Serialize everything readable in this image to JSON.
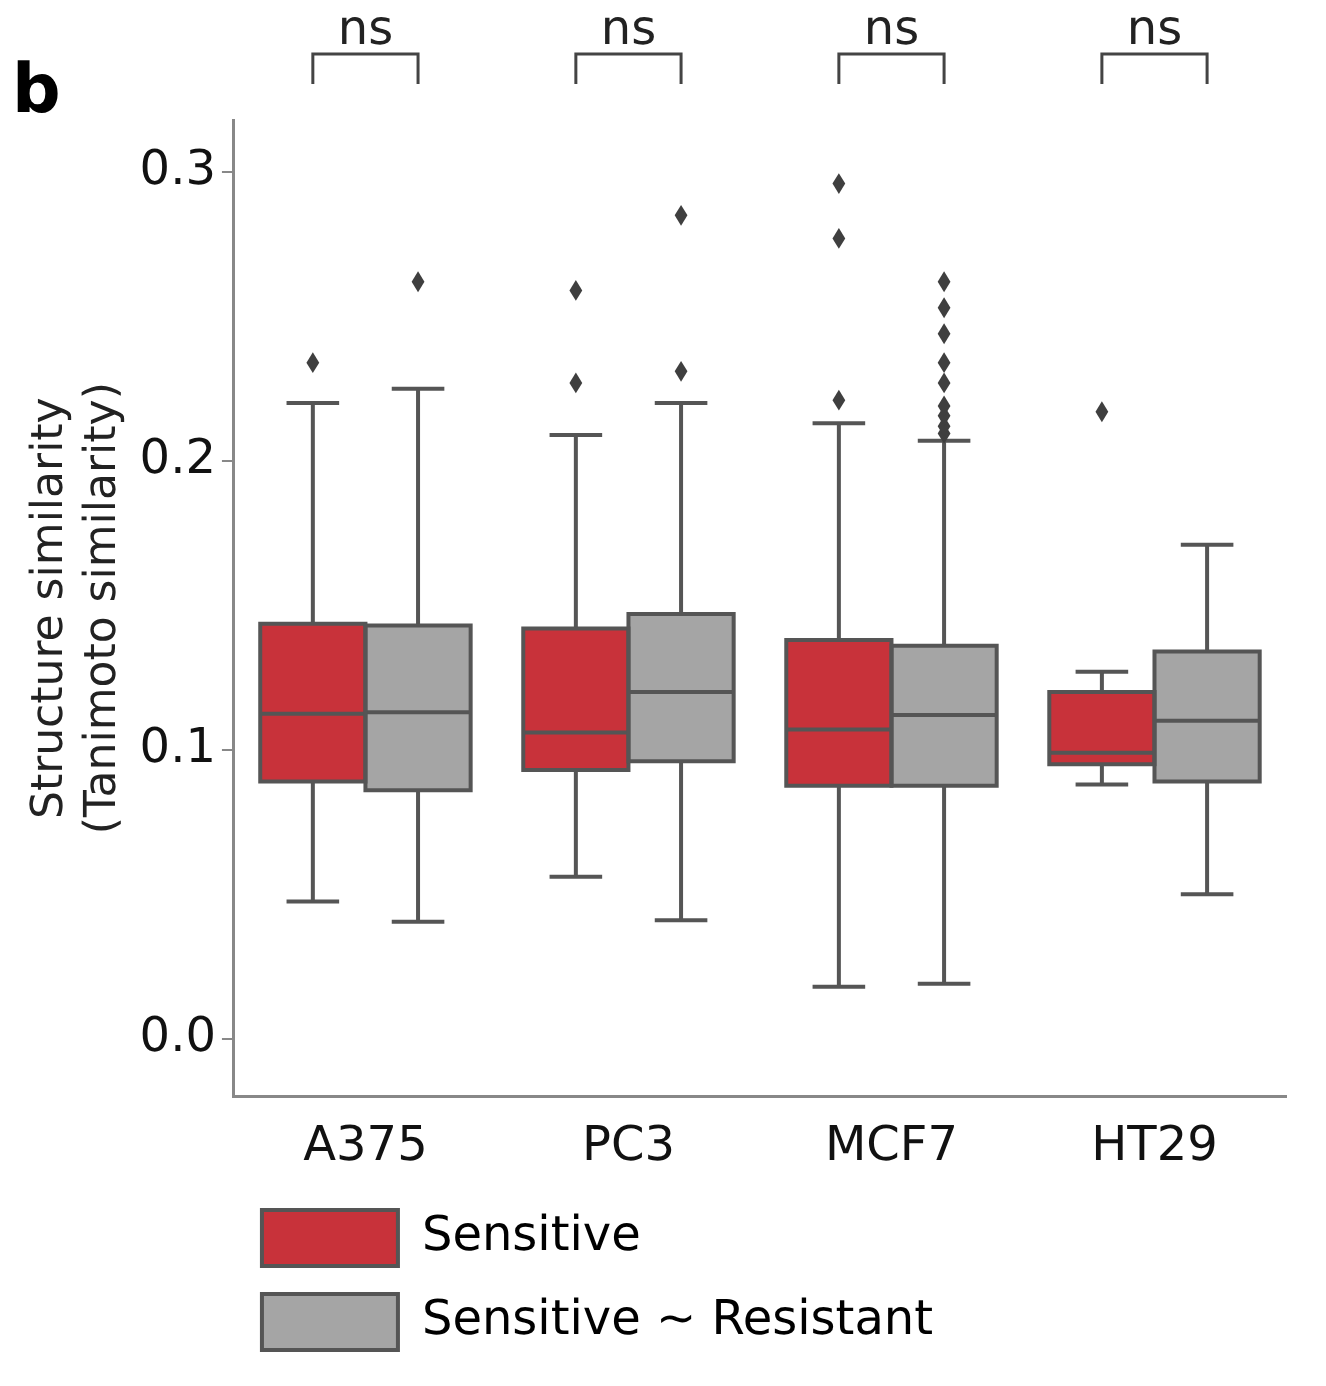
{
  "chart_data": {
    "type": "box",
    "title": "b",
    "ylabel": "Structure similarity (Tanimoto similarity)",
    "categories": [
      "A375",
      "PC3",
      "MCF7",
      "HT29"
    ],
    "ylim": [
      -0.02,
      0.318
    ],
    "yticks": [
      {
        "value": 0,
        "label": "0.0"
      },
      {
        "value": 0.1,
        "label": "0.1"
      },
      {
        "value": 0.2,
        "label": "0.2"
      },
      {
        "value": 0.3,
        "label": "0.3"
      }
    ],
    "grid": false,
    "legend": "bottom",
    "marker": "diamond",
    "annotations": [
      "ns",
      "ns",
      "ns",
      "ns"
    ],
    "series": [
      {
        "name": "Sensitive",
        "color": "#c8323a",
        "boxes": [
          {
            "low": 0.0475,
            "q1": 0.089,
            "median": 0.1125,
            "q3": 0.1436,
            "high": 0.22,
            "outliers": [
              0.234
            ]
          },
          {
            "low": 0.056,
            "q1": 0.093,
            "median": 0.106,
            "q3": 0.142,
            "high": 0.209,
            "outliers": [
              0.227,
              0.259
            ]
          },
          {
            "low": 0.018,
            "q1": 0.0875,
            "median": 0.107,
            "q3": 0.138,
            "high": 0.213,
            "outliers": [
              0.221,
              0.277,
              0.296
            ]
          },
          {
            "low": 0.088,
            "q1": 0.095,
            "median": 0.099,
            "q3": 0.12,
            "high": 0.127,
            "outliers": [
              0.217
            ]
          }
        ]
      },
      {
        "name": "Sensitive ~ Resistant",
        "color": "#a5a5a5",
        "boxes": [
          {
            "low": 0.0405,
            "q1": 0.086,
            "median": 0.113,
            "q3": 0.143,
            "high": 0.225,
            "outliers": [
              0.262
            ]
          },
          {
            "low": 0.041,
            "q1": 0.096,
            "median": 0.12,
            "q3": 0.147,
            "high": 0.22,
            "outliers": [
              0.231,
              0.285
            ]
          },
          {
            "low": 0.019,
            "q1": 0.0875,
            "median": 0.112,
            "q3": 0.136,
            "high": 0.207,
            "outliers": [
              0.2095,
              0.212,
              0.2156,
              0.219,
              0.227,
              0.234,
              0.244,
              0.253,
              0.262
            ]
          },
          {
            "low": 0.05,
            "q1": 0.089,
            "median": 0.11,
            "q3": 0.134,
            "high": 0.171
          }
        ]
      }
    ]
  }
}
